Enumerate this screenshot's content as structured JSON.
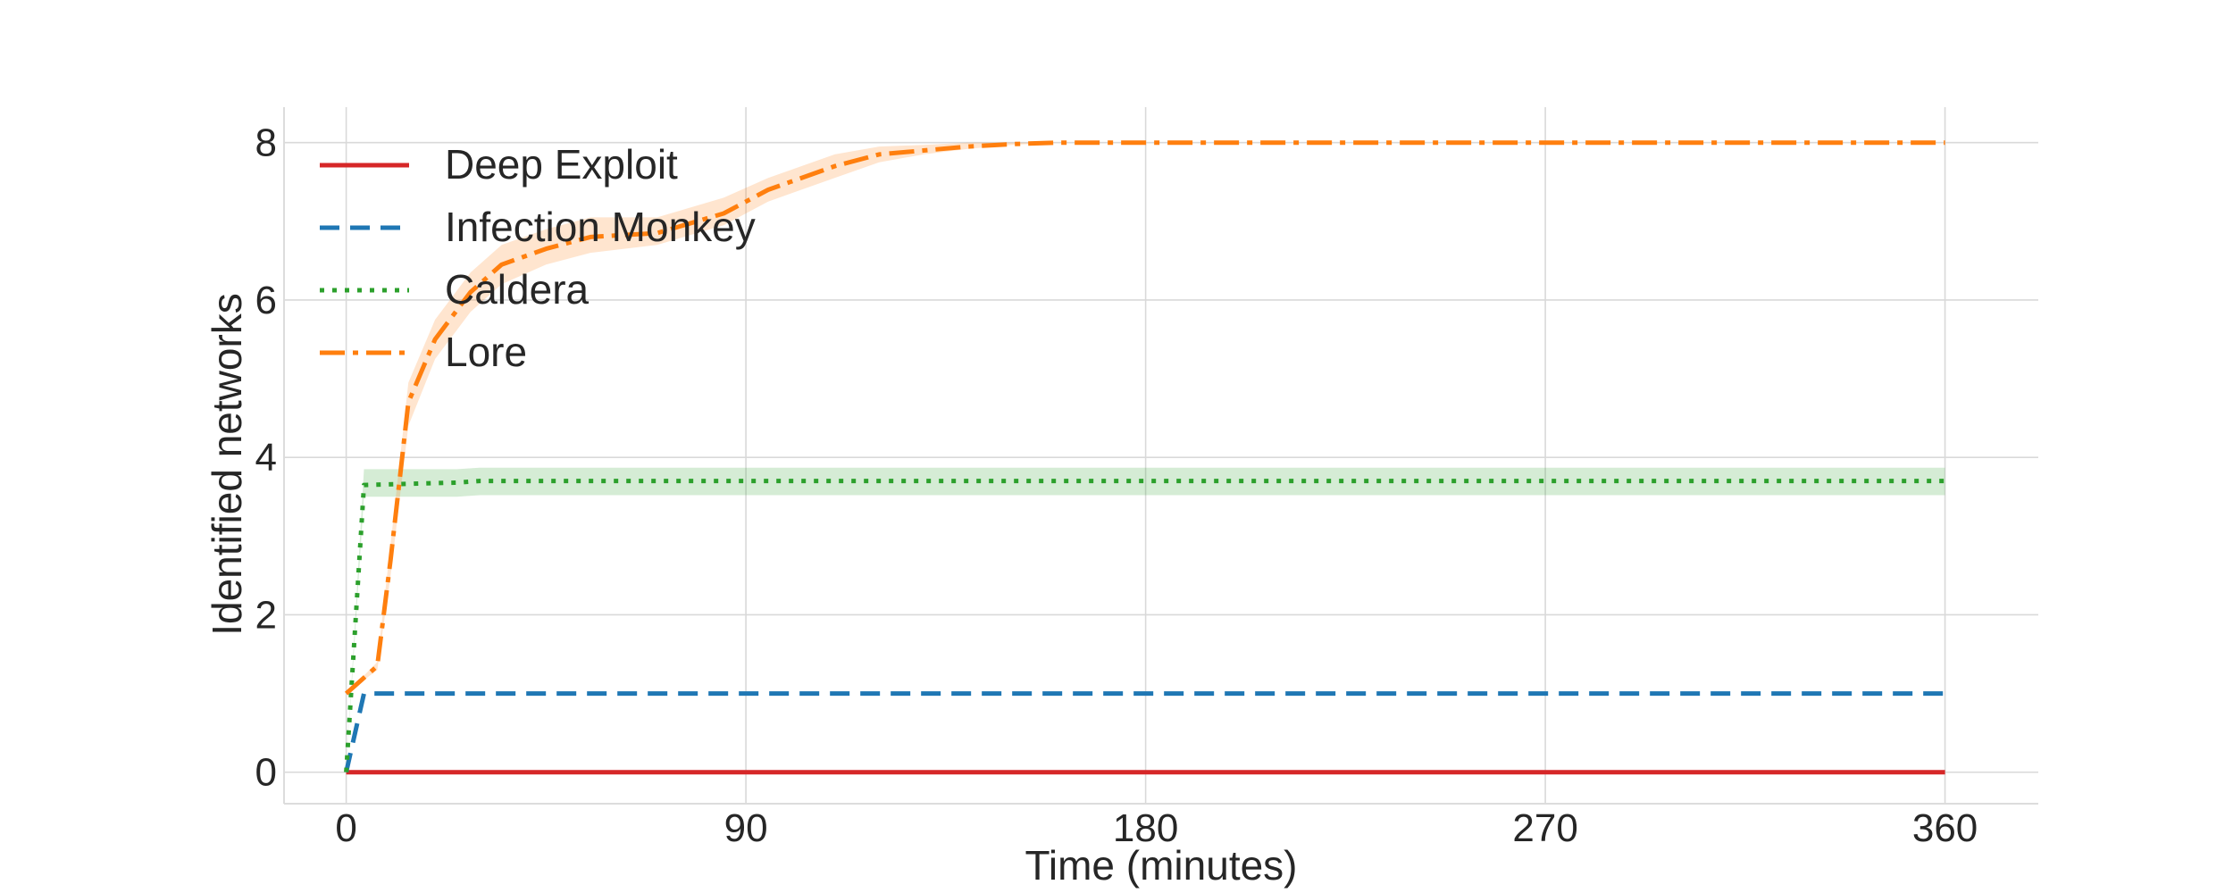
{
  "chart_data": {
    "type": "line",
    "title": "",
    "xlabel": "Time (minutes)",
    "ylabel": "Identified networks",
    "xlim": [
      -14,
      381
    ],
    "ylim": [
      -0.4,
      8.45
    ],
    "xticks": [
      0,
      90,
      180,
      270,
      360
    ],
    "yticks": [
      0,
      2,
      4,
      6,
      8
    ],
    "grid": true,
    "legend_position": "top-left",
    "series": [
      {
        "name": "Deep Exploit",
        "color": "#d62728",
        "style": "solid",
        "x": [
          0,
          360
        ],
        "y": [
          0,
          0
        ]
      },
      {
        "name": "Infection Monkey",
        "color": "#1f77b4",
        "style": "dashed",
        "x": [
          0,
          4,
          360
        ],
        "y": [
          0,
          1,
          1
        ]
      },
      {
        "name": "Caldera",
        "color": "#2ca02c",
        "style": "dotted",
        "x": [
          0,
          4,
          25,
          30,
          360
        ],
        "y": [
          0,
          3.65,
          3.68,
          3.7,
          3.7
        ],
        "band_lower": [
          0,
          3.5,
          3.5,
          3.52,
          3.52
        ],
        "band_upper": [
          0,
          3.85,
          3.85,
          3.87,
          3.87
        ]
      },
      {
        "name": "Lore",
        "color": "#ff7f0e",
        "style": "dashdot",
        "x": [
          0,
          7,
          10,
          14,
          20,
          28,
          35,
          45,
          55,
          70,
          85,
          95,
          100,
          110,
          120,
          130,
          140,
          150,
          160,
          360
        ],
        "y": [
          1.0,
          1.35,
          2.7,
          4.7,
          5.5,
          6.1,
          6.45,
          6.65,
          6.8,
          6.85,
          7.1,
          7.4,
          7.5,
          7.7,
          7.85,
          7.9,
          7.95,
          7.98,
          8.0,
          8.0
        ],
        "band_lower": [
          1.0,
          1.3,
          2.5,
          4.4,
          5.25,
          5.85,
          6.2,
          6.45,
          6.6,
          6.7,
          6.95,
          7.25,
          7.35,
          7.55,
          7.75,
          7.85,
          7.92,
          7.97,
          8.0,
          8.0
        ],
        "band_upper": [
          1.0,
          1.4,
          2.9,
          4.95,
          5.75,
          6.35,
          6.7,
          6.9,
          7.05,
          7.05,
          7.3,
          7.55,
          7.65,
          7.85,
          7.95,
          7.97,
          8.0,
          8.0,
          8.0,
          8.0
        ]
      }
    ]
  }
}
